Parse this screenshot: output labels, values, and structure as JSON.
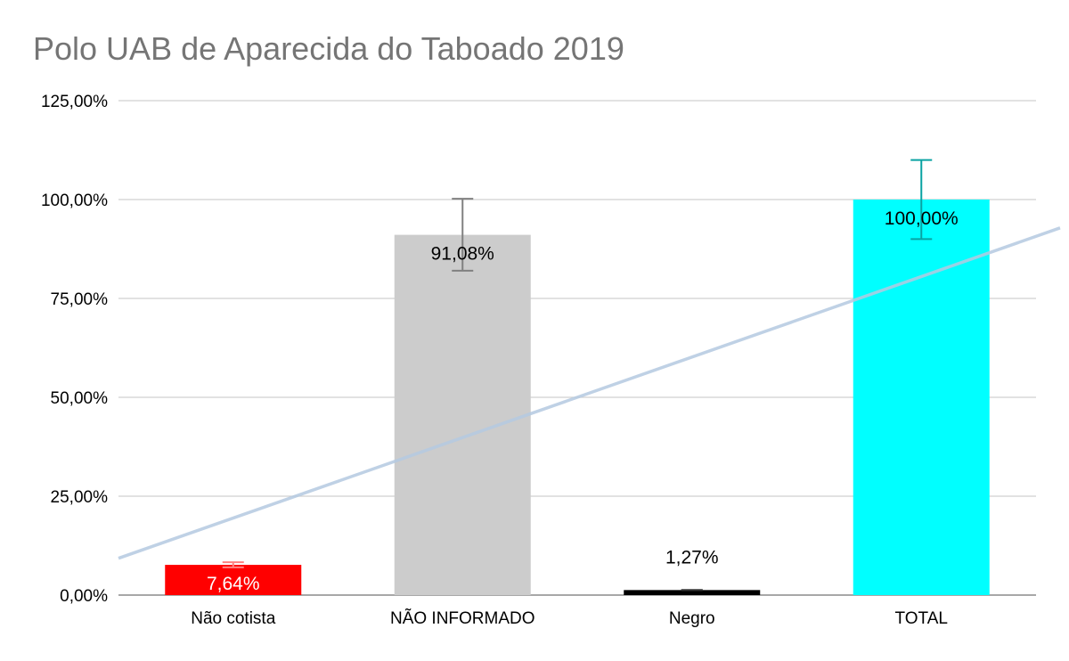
{
  "chart_data": {
    "type": "bar",
    "title": "Polo UAB de Aparecida do Taboado 2019",
    "categories": [
      "Não cotista",
      "NÃO INFORMADO",
      "Negro",
      "TOTAL"
    ],
    "values": [
      7.64,
      91.08,
      1.27,
      100.0
    ],
    "value_labels": [
      "7,64%",
      "91,08%",
      "1,27%",
      "100,00%"
    ],
    "bar_colors": [
      "#ff0000",
      "#cccccc",
      "#000000",
      "#00ffff"
    ],
    "label_colors": [
      "#ffffff",
      "#000000",
      "#000000",
      "#000000"
    ],
    "error_bars": [
      {
        "low": 7.0,
        "high": 8.3,
        "color": "#ff8080"
      },
      {
        "low": 82.0,
        "high": 100.2,
        "color": "#808080"
      },
      {
        "low": 1.27,
        "high": 1.27,
        "color": "#333333"
      },
      {
        "low": 90.0,
        "high": 110.0,
        "color": "#0aa3a3"
      }
    ],
    "trendline": {
      "type": "linear",
      "color": "#b4c9e0",
      "y_at_left_edge": 9.3,
      "y_at_right_edge": 90.7
    },
    "y_ticks": [
      "0,00%",
      "25,00%",
      "50,00%",
      "75,00%",
      "100,00%",
      "125,00%"
    ],
    "ylim": [
      0,
      125
    ],
    "xlabel": "",
    "ylabel": "",
    "grid": true,
    "legend": "none"
  }
}
